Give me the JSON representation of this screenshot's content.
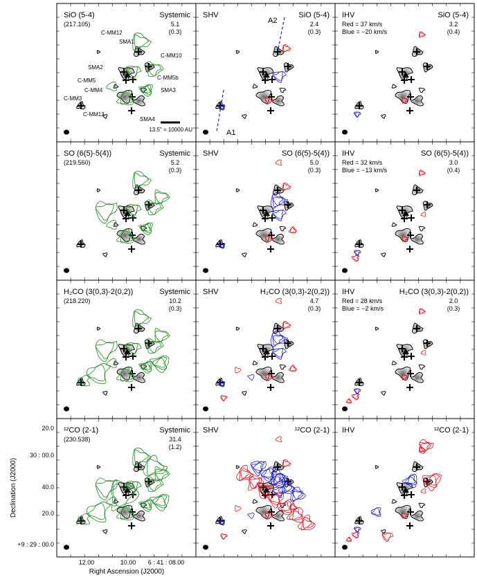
{
  "chart_data": {
    "type": "contour-map-grid",
    "x_axis": {
      "label": "Right Ascension (J2000)",
      "ticks": [
        "12.00",
        "10.00",
        "6 : 41 : 08.00"
      ]
    },
    "y_axis": {
      "label": "Declination (J2000)",
      "ticks": [
        "20.0",
        "30 : 00.0",
        "40.0",
        "20.0",
        "+9 : 29 : 00.0"
      ]
    },
    "rows": [
      {
        "molecule": "SiO (5-4)",
        "frequency": "(217.105)",
        "panels": [
          {
            "title_left": "SiO (5-4)",
            "title_right": "Systemic",
            "peak": "5.1",
            "rms": "(0.3)",
            "colors": [
              "green"
            ]
          },
          {
            "title_left": "SHV",
            "title_right": "SiO (5-4)",
            "peak": "2.4",
            "rms": "(0.3)",
            "colors": [
              "red",
              "blue"
            ]
          },
          {
            "title_left": "IHV",
            "title_right": "SiO (5-4)",
            "peak": "3.2",
            "rms": "(0.4)",
            "colors": [
              "red",
              "blue"
            ],
            "red_label": "Red = 37 km/s",
            "blue_label": "Blue = −20 km/s"
          }
        ]
      },
      {
        "molecule": "SO (6(5)-5(4))",
        "frequency": "(219.560)",
        "panels": [
          {
            "title_left": "SO (6(5)-5(4))",
            "title_right": "Systemic",
            "peak": "5.2",
            "rms": "(0.3)",
            "colors": [
              "green"
            ]
          },
          {
            "title_left": "SHV",
            "title_right": "SO (6(5)-5(4))",
            "peak": "5.0",
            "rms": "(0.3)",
            "colors": [
              "red",
              "blue"
            ]
          },
          {
            "title_left": "IHV",
            "title_right": "SO (6(5)-5(4))",
            "peak": "3.0",
            "rms": "(0.4)",
            "colors": [
              "red",
              "blue"
            ],
            "red_label": "Red = 32 km/s",
            "blue_label": "Blue = −13 km/s"
          }
        ]
      },
      {
        "molecule": "H2CO (3(0,3)-2(0,2))",
        "frequency": "(218.220)",
        "panels": [
          {
            "title_left": "H₂CO (3(0,3)-2(0,2))",
            "title_right": "Systemic",
            "peak": "10.2",
            "rms": "(0.3)",
            "colors": [
              "green"
            ]
          },
          {
            "title_left": "SHV",
            "title_right": "H₂CO (3(0,3)-2(0,2))",
            "peak": "4.7",
            "rms": "(0.3)",
            "colors": [
              "red",
              "blue"
            ]
          },
          {
            "title_left": "IHV",
            "title_right": "H₂CO (3(0,3)-2(0,2))",
            "peak": "2.0",
            "rms": "(0.3)",
            "colors": [
              "red",
              "blue"
            ],
            "red_label": "Red = 28 km/s",
            "blue_label": "Blue = −2 km/s"
          }
        ]
      },
      {
        "molecule": "12CO (2-1)",
        "frequency": "(230.538)",
        "panels": [
          {
            "title_left": "¹²CO (2-1)",
            "title_right": "Systemic",
            "peak": "31.4",
            "rms": "(1.2)",
            "colors": [
              "green"
            ]
          },
          {
            "title_left": "SHV",
            "title_right": "¹²CO (2-1)",
            "peak": "",
            "rms": "",
            "colors": [
              "red",
              "blue"
            ]
          },
          {
            "title_left": "IHV",
            "title_right": "¹²CO (2-1)",
            "peak": "",
            "rms": "",
            "colors": [
              "red",
              "blue"
            ]
          }
        ]
      }
    ],
    "source_labels": [
      "C-MM12",
      "SMA1",
      "C-MM10",
      "SMA2",
      "C-MM5",
      "C-MM5b",
      "C-MM4",
      "SMA3",
      "C-MM3",
      "C-MM13",
      "SMA4"
    ],
    "outflow_axes": [
      "A1",
      "A2"
    ],
    "scale_bar": "13.5\" = 10000 AU",
    "contour_colors": {
      "systemic": "#1a8a1a",
      "red": "#e0141e",
      "blue": "#1a1ad0",
      "continuum": "#000000",
      "fill": "#9a9a9a"
    }
  }
}
